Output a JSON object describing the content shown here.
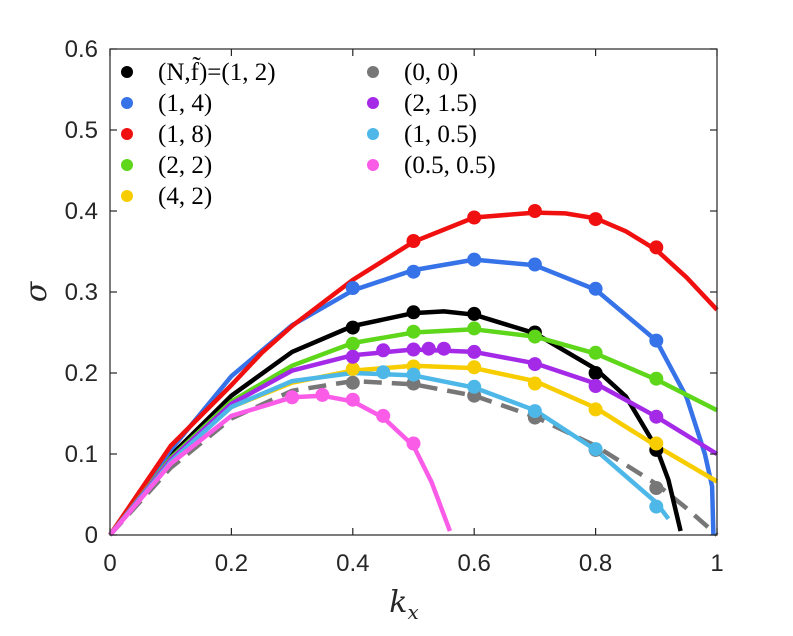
{
  "chart_data": {
    "type": "line",
    "title": "",
    "xlabel": "k_x",
    "ylabel": "σ",
    "xlim": [
      0,
      1
    ],
    "ylim": [
      0,
      0.6
    ],
    "xticks": [
      "0",
      "0.2",
      "0.4",
      "0.6",
      "0.8",
      "1"
    ],
    "yticks": [
      "0",
      "0.1",
      "0.2",
      "0.3",
      "0.4",
      "0.5",
      "0.6"
    ],
    "legend_position": "top-left",
    "legend_columns": 2,
    "series": [
      {
        "name": "(N,f̃)=(1, 2)",
        "color": "#000000",
        "dashed": false,
        "line": [
          [
            0,
            0
          ],
          [
            0.1,
            0.098
          ],
          [
            0.2,
            0.172
          ],
          [
            0.3,
            0.226
          ],
          [
            0.4,
            0.258
          ],
          [
            0.5,
            0.274
          ],
          [
            0.55,
            0.276
          ],
          [
            0.6,
            0.272
          ],
          [
            0.7,
            0.249
          ],
          [
            0.8,
            0.205
          ],
          [
            0.85,
            0.171
          ],
          [
            0.9,
            0.108
          ],
          [
            0.92,
            0.068
          ],
          [
            0.94,
            0.005
          ]
        ],
        "points": [
          [
            0.4,
            0.256
          ],
          [
            0.5,
            0.275
          ],
          [
            0.6,
            0.273
          ],
          [
            0.7,
            0.25
          ],
          [
            0.8,
            0.2
          ],
          [
            0.9,
            0.105
          ]
        ]
      },
      {
        "name": "(1, 4)",
        "color": "#3672e8",
        "dashed": false,
        "line": [
          [
            0,
            0
          ],
          [
            0.1,
            0.105
          ],
          [
            0.2,
            0.196
          ],
          [
            0.3,
            0.259
          ],
          [
            0.4,
            0.302
          ],
          [
            0.5,
            0.327
          ],
          [
            0.6,
            0.34
          ],
          [
            0.7,
            0.333
          ],
          [
            0.8,
            0.303
          ],
          [
            0.9,
            0.24
          ],
          [
            0.95,
            0.17
          ],
          [
            0.98,
            0.1
          ],
          [
            0.992,
            0.06
          ],
          [
            0.994,
            0
          ]
        ],
        "points": [
          [
            0.4,
            0.305
          ],
          [
            0.5,
            0.325
          ],
          [
            0.6,
            0.34
          ],
          [
            0.7,
            0.334
          ],
          [
            0.8,
            0.304
          ],
          [
            0.9,
            0.24
          ]
        ]
      },
      {
        "name": "(1, 8)",
        "color": "#f01010",
        "dashed": false,
        "line": [
          [
            0,
            0
          ],
          [
            0.1,
            0.11
          ],
          [
            0.2,
            0.185
          ],
          [
            0.25,
            0.225
          ],
          [
            0.3,
            0.258
          ],
          [
            0.4,
            0.315
          ],
          [
            0.5,
            0.362
          ],
          [
            0.6,
            0.392
          ],
          [
            0.7,
            0.398
          ],
          [
            0.75,
            0.397
          ],
          [
            0.8,
            0.391
          ],
          [
            0.85,
            0.375
          ],
          [
            0.9,
            0.352
          ],
          [
            0.95,
            0.318
          ],
          [
            1.0,
            0.278
          ]
        ],
        "points": [
          [
            0.5,
            0.363
          ],
          [
            0.6,
            0.392
          ],
          [
            0.7,
            0.4
          ],
          [
            0.8,
            0.39
          ],
          [
            0.9,
            0.355
          ]
        ]
      },
      {
        "name": "(2, 2)",
        "color": "#5ed61a",
        "dashed": false,
        "line": [
          [
            0,
            0
          ],
          [
            0.1,
            0.095
          ],
          [
            0.2,
            0.165
          ],
          [
            0.3,
            0.209
          ],
          [
            0.4,
            0.237
          ],
          [
            0.5,
            0.25
          ],
          [
            0.6,
            0.254
          ],
          [
            0.7,
            0.245
          ],
          [
            0.8,
            0.224
          ],
          [
            0.9,
            0.192
          ],
          [
            1.0,
            0.154
          ]
        ],
        "points": [
          [
            0.4,
            0.236
          ],
          [
            0.5,
            0.251
          ],
          [
            0.6,
            0.255
          ],
          [
            0.7,
            0.245
          ],
          [
            0.8,
            0.225
          ],
          [
            0.9,
            0.193
          ]
        ]
      },
      {
        "name": "(4, 2)",
        "color": "#f7cd00",
        "dashed": false,
        "line": [
          [
            0,
            0
          ],
          [
            0.1,
            0.093
          ],
          [
            0.2,
            0.158
          ],
          [
            0.3,
            0.188
          ],
          [
            0.4,
            0.203
          ],
          [
            0.5,
            0.209
          ],
          [
            0.6,
            0.206
          ],
          [
            0.7,
            0.19
          ],
          [
            0.8,
            0.157
          ],
          [
            0.9,
            0.11
          ],
          [
            1.0,
            0.066
          ]
        ],
        "points": [
          [
            0.4,
            0.205
          ],
          [
            0.5,
            0.208
          ],
          [
            0.6,
            0.207
          ],
          [
            0.7,
            0.187
          ],
          [
            0.8,
            0.155
          ],
          [
            0.9,
            0.113
          ]
        ]
      },
      {
        "name": "(0, 0)",
        "color": "#777777",
        "dashed": true,
        "line": [
          [
            0,
            0
          ],
          [
            0.1,
            0.083
          ],
          [
            0.2,
            0.144
          ],
          [
            0.3,
            0.178
          ],
          [
            0.4,
            0.19
          ],
          [
            0.5,
            0.186
          ],
          [
            0.6,
            0.172
          ],
          [
            0.7,
            0.146
          ],
          [
            0.8,
            0.11
          ],
          [
            0.9,
            0.063
          ],
          [
            0.95,
            0.033
          ],
          [
            1.0,
            0
          ]
        ],
        "points": [
          [
            0.4,
            0.188
          ],
          [
            0.5,
            0.187
          ],
          [
            0.6,
            0.172
          ],
          [
            0.7,
            0.145
          ],
          [
            0.8,
            0.105
          ],
          [
            0.9,
            0.058
          ]
        ]
      },
      {
        "name": "(2, 1.5)",
        "color": "#a42ae8",
        "dashed": false,
        "line": [
          [
            0,
            0
          ],
          [
            0.1,
            0.093
          ],
          [
            0.2,
            0.162
          ],
          [
            0.3,
            0.203
          ],
          [
            0.4,
            0.222
          ],
          [
            0.5,
            0.229
          ],
          [
            0.6,
            0.226
          ],
          [
            0.7,
            0.212
          ],
          [
            0.8,
            0.187
          ],
          [
            0.9,
            0.146
          ],
          [
            1.0,
            0.1
          ]
        ],
        "points": [
          [
            0.4,
            0.22
          ],
          [
            0.45,
            0.228
          ],
          [
            0.5,
            0.229
          ],
          [
            0.525,
            0.23
          ],
          [
            0.55,
            0.23
          ],
          [
            0.6,
            0.226
          ],
          [
            0.7,
            0.211
          ],
          [
            0.8,
            0.184
          ],
          [
            0.9,
            0.146
          ]
        ]
      },
      {
        "name": "(1, 0.5)",
        "color": "#4db8e8",
        "dashed": false,
        "line": [
          [
            0,
            0
          ],
          [
            0.1,
            0.09
          ],
          [
            0.2,
            0.158
          ],
          [
            0.3,
            0.19
          ],
          [
            0.4,
            0.2
          ],
          [
            0.5,
            0.197
          ],
          [
            0.6,
            0.182
          ],
          [
            0.7,
            0.154
          ],
          [
            0.8,
            0.105
          ],
          [
            0.9,
            0.04
          ],
          [
            0.92,
            0.02
          ]
        ],
        "points": [
          [
            0.45,
            0.201
          ],
          [
            0.5,
            0.198
          ],
          [
            0.6,
            0.183
          ],
          [
            0.7,
            0.153
          ],
          [
            0.8,
            0.106
          ],
          [
            0.9,
            0.035
          ]
        ]
      },
      {
        "name": "(0.5, 0.5)",
        "color": "#fa5ce8",
        "dashed": false,
        "line": [
          [
            0,
            0
          ],
          [
            0.1,
            0.088
          ],
          [
            0.2,
            0.147
          ],
          [
            0.3,
            0.17
          ],
          [
            0.35,
            0.172
          ],
          [
            0.4,
            0.165
          ],
          [
            0.45,
            0.145
          ],
          [
            0.5,
            0.11
          ],
          [
            0.53,
            0.065
          ],
          [
            0.56,
            0.005
          ]
        ],
        "points": [
          [
            0.3,
            0.17
          ],
          [
            0.35,
            0.173
          ],
          [
            0.4,
            0.167
          ],
          [
            0.45,
            0.147
          ],
          [
            0.5,
            0.113
          ]
        ]
      }
    ]
  }
}
